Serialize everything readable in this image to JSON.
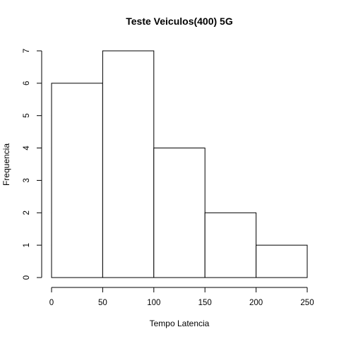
{
  "chart_data": {
    "type": "bar",
    "title": "Teste Veiculos(400) 5G",
    "xlabel": "Tempo Latencia",
    "ylabel": "Frequencia",
    "bins": [
      {
        "x0": 0,
        "x1": 50,
        "count": 6
      },
      {
        "x0": 50,
        "x1": 100,
        "count": 7
      },
      {
        "x0": 100,
        "x1": 150,
        "count": 4
      },
      {
        "x0": 150,
        "x1": 200,
        "count": 2
      },
      {
        "x0": 200,
        "x1": 250,
        "count": 1
      }
    ],
    "xlim": [
      0,
      250
    ],
    "ylim": [
      0,
      7
    ],
    "x_ticks": [
      "0",
      "50",
      "100",
      "150",
      "200",
      "250"
    ],
    "y_ticks": [
      "0",
      "1",
      "2",
      "3",
      "4",
      "5",
      "6",
      "7"
    ],
    "grid": false,
    "bar_fill": "#ffffff",
    "bar_stroke": "#000000"
  }
}
